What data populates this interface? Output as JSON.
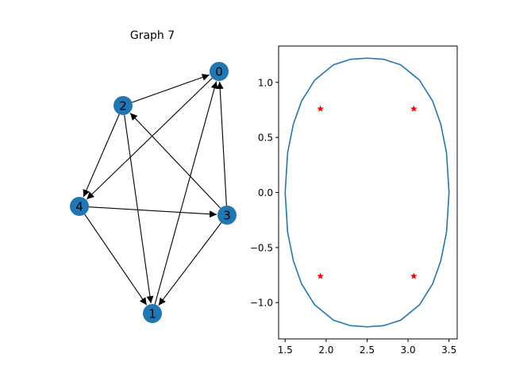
{
  "chart_data": [
    {
      "type": "network",
      "title": "Graph 7",
      "node_color": "#1f77b4",
      "edge_color": "#000000",
      "nodes": [
        "0",
        "1",
        "2",
        "3",
        "4"
      ],
      "edges": [
        [
          "2",
          "0"
        ],
        [
          "2",
          "4"
        ],
        [
          "2",
          "1"
        ],
        [
          "4",
          "3"
        ],
        [
          "4",
          "1"
        ],
        [
          "3",
          "0"
        ],
        [
          "3",
          "2"
        ],
        [
          "3",
          "1"
        ],
        [
          "1",
          "0"
        ],
        [
          "0",
          "4"
        ]
      ]
    },
    {
      "type": "line",
      "title": "",
      "xlabel": "",
      "ylabel": "",
      "xlim": [
        1.42,
        3.6
      ],
      "ylim": [
        -1.33,
        1.33
      ],
      "xticks": [
        "1.5",
        "2.0",
        "2.5",
        "3.0",
        "3.5"
      ],
      "xtick_values": [
        1.5,
        2.0,
        2.5,
        3.0,
        3.5
      ],
      "yticks": [
        "1.0",
        "0.5",
        "0.0",
        "−0.5",
        "−1.0"
      ],
      "ytick_values": [
        1.0,
        0.5,
        0.0,
        -0.5,
        -1.0
      ],
      "series": [
        {
          "kind": "line",
          "color": "#1f77b4",
          "x": [
            3.5,
            3.47,
            3.4,
            3.3,
            3.14,
            2.91,
            2.7,
            2.5,
            2.3,
            2.09,
            1.86,
            1.7,
            1.6,
            1.53,
            1.5,
            1.53,
            1.6,
            1.7,
            1.86,
            2.09,
            2.3,
            2.5,
            2.7,
            2.91,
            3.14,
            3.3,
            3.4,
            3.47,
            3.5
          ],
          "y": [
            0.0,
            0.36,
            0.62,
            0.83,
            1.02,
            1.16,
            1.21,
            1.22,
            1.21,
            1.16,
            1.02,
            0.83,
            0.62,
            0.36,
            0.0,
            -0.36,
            -0.62,
            -0.83,
            -1.02,
            -1.16,
            -1.21,
            -1.22,
            -1.21,
            -1.16,
            -1.02,
            -0.83,
            -0.62,
            -0.36,
            0.0
          ]
        },
        {
          "kind": "points",
          "marker": "star",
          "color": "#ff0000",
          "x": [
            1.93,
            3.07,
            1.93,
            3.07
          ],
          "y": [
            0.76,
            0.76,
            -0.76,
            -0.76
          ]
        }
      ]
    }
  ]
}
